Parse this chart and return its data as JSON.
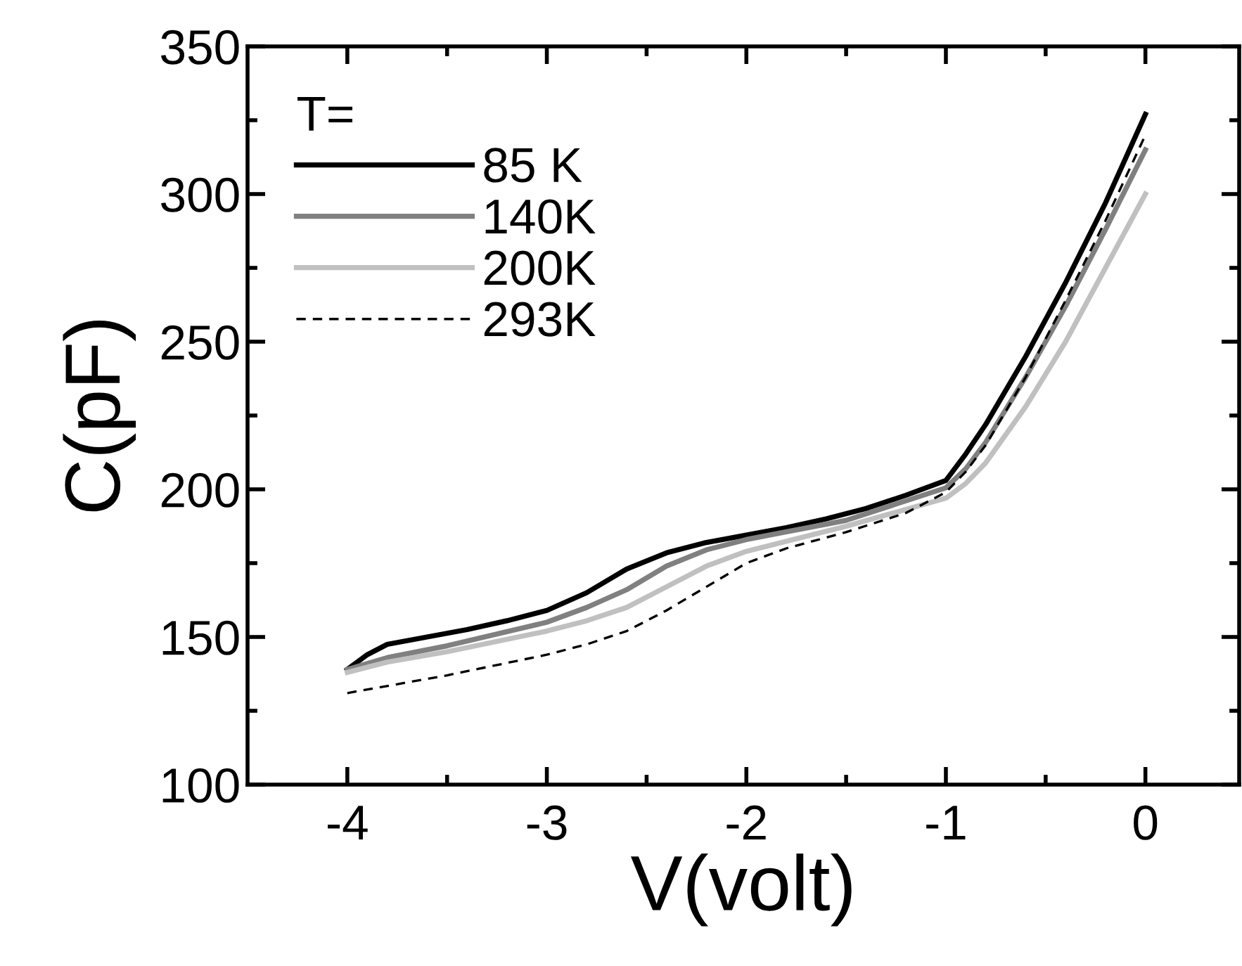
{
  "chart_data": {
    "type": "line",
    "xlabel": "V(volt)",
    "ylabel": "C(pF)",
    "legend_title": "T=",
    "legend": "top left",
    "grid": false,
    "xlim": [
      -4.5,
      0.47
    ],
    "xticks": [
      -4,
      -3,
      -2,
      -1,
      0
    ],
    "ylim": [
      100,
      350
    ],
    "yticks": [
      100,
      150,
      200,
      250,
      300,
      350
    ],
    "series": [
      {
        "name": "85 K",
        "color": "#000000",
        "line_style": "solid",
        "x": [
          -4,
          -3.9,
          -3.8,
          -3.6,
          -3.4,
          -3.2,
          -3.0,
          -2.8,
          -2.6,
          -2.4,
          -2.2,
          -2.0,
          -1.8,
          -1.6,
          -1.4,
          -1.2,
          -1.0,
          -0.9,
          -0.8,
          -0.6,
          -0.4,
          -0.2,
          0
        ],
        "values": [
          139,
          144,
          147.5,
          150,
          152.5,
          155.5,
          159,
          165,
          173,
          178.5,
          182,
          184.5,
          187,
          190,
          193.5,
          198,
          203,
          212,
          222,
          245,
          270,
          297,
          327
        ]
      },
      {
        "name": "140K",
        "color": "#808080",
        "line_style": "solid",
        "x": [
          -4,
          -3.8,
          -3.5,
          -3.0,
          -2.8,
          -2.6,
          -2.4,
          -2.2,
          -2.0,
          -1.5,
          -1.0,
          -0.9,
          -0.8,
          -0.6,
          -0.4,
          -0.2,
          0
        ],
        "values": [
          139,
          143,
          147,
          155,
          160,
          166,
          174,
          179.5,
          183,
          189.5,
          200.5,
          207,
          216,
          238,
          262,
          288,
          315
        ]
      },
      {
        "name": "200K",
        "color": "#c0c0c0",
        "line_style": "solid",
        "x": [
          -4,
          -3.8,
          -3.5,
          -3.0,
          -2.8,
          -2.6,
          -2.4,
          -2.2,
          -2.0,
          -1.5,
          -1.0,
          -0.9,
          -0.8,
          -0.6,
          -0.4,
          -0.2,
          0
        ],
        "values": [
          138,
          141.5,
          145,
          152,
          155.5,
          160,
          167,
          174,
          179,
          187.5,
          197,
          202,
          209,
          228,
          250,
          275,
          300
        ]
      },
      {
        "name": "293K",
        "color": "#000000",
        "line_style": "dashed",
        "x": [
          -4,
          -3.5,
          -3.0,
          -2.8,
          -2.6,
          -2.4,
          -2.2,
          -2.0,
          -1.8,
          -1.5,
          -1.2,
          -1.0,
          -0.9,
          -0.8,
          -0.6,
          -0.4,
          -0.2,
          0
        ],
        "values": [
          131,
          137,
          144,
          147.5,
          152,
          159,
          167,
          175,
          180,
          185.5,
          192,
          199,
          206,
          215,
          238,
          264,
          291,
          320
        ]
      }
    ]
  }
}
